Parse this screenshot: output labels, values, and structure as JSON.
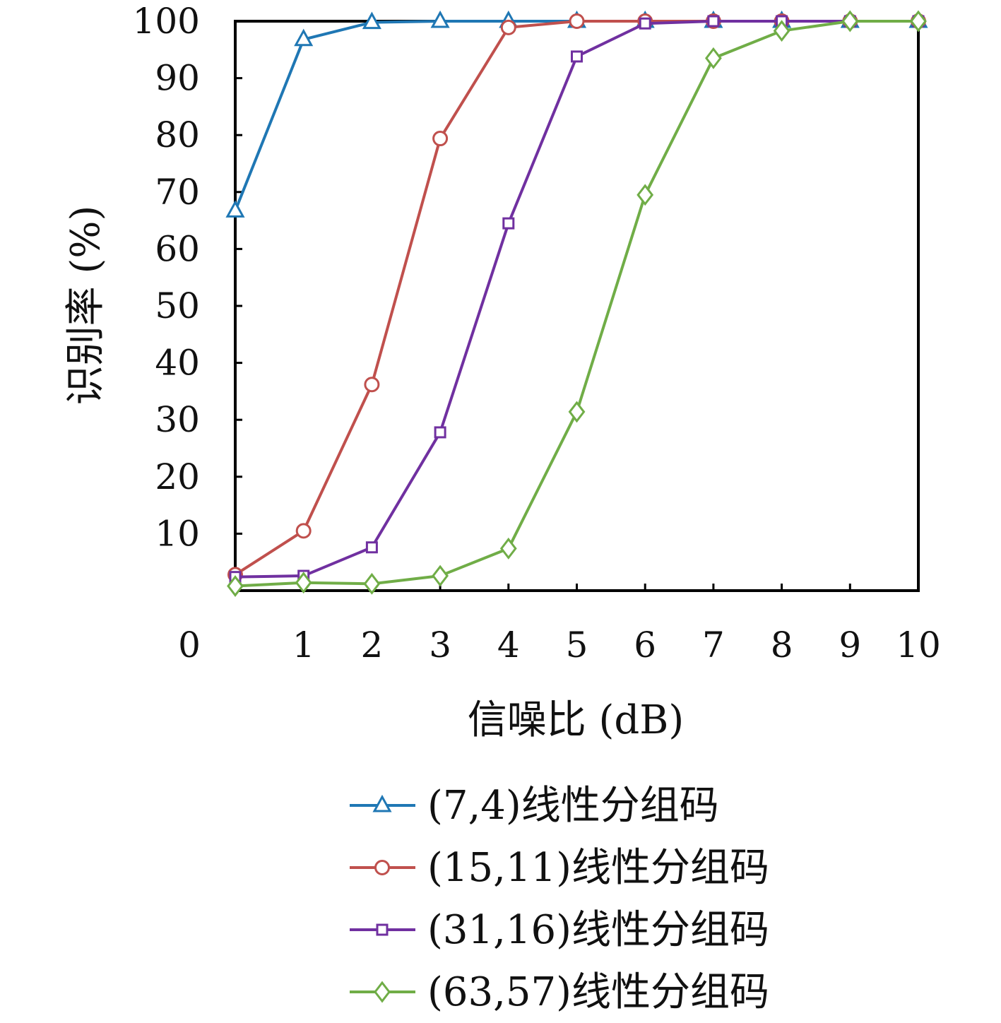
{
  "chart_data": {
    "type": "line",
    "xlabel": "信噪比 (dB)",
    "ylabel": "识别率 (%)",
    "xlim": [
      0,
      10
    ],
    "ylim": [
      0,
      100
    ],
    "x_ticks": [
      "0",
      "1",
      "2",
      "3",
      "4",
      "5",
      "6",
      "7",
      "8",
      "9",
      "10"
    ],
    "y_ticks": [
      "10",
      "20",
      "30",
      "40",
      "50",
      "60",
      "70",
      "80",
      "90",
      "100"
    ],
    "x": [
      0,
      1,
      2,
      3,
      4,
      5,
      6,
      7,
      8,
      9,
      10
    ],
    "grid": false,
    "legend_position": "bottom",
    "series": [
      {
        "name": "(7,4)线性分组码",
        "color": "#1f77b4",
        "marker": "triangle",
        "values": [
          66.7,
          96.8,
          99.8,
          100,
          100,
          100,
          100,
          100,
          100,
          100,
          100
        ]
      },
      {
        "name": "(15,11)线性分组码",
        "color": "#c0504d",
        "marker": "circle",
        "values": [
          2.8,
          10.5,
          36.2,
          79.4,
          98.9,
          100,
          100,
          100,
          100,
          100,
          100
        ]
      },
      {
        "name": "(31,16)线性分组码",
        "color": "#7030a0",
        "marker": "square",
        "values": [
          2.4,
          2.6,
          7.6,
          27.8,
          64.5,
          93.8,
          99.6,
          100,
          100,
          100,
          100
        ]
      },
      {
        "name": "(63,57)线性分组码",
        "color": "#70ad47",
        "marker": "diamond",
        "values": [
          0.8,
          1.4,
          1.2,
          2.6,
          7.4,
          31.4,
          69.5,
          93.5,
          98.3,
          100,
          100
        ]
      }
    ]
  }
}
